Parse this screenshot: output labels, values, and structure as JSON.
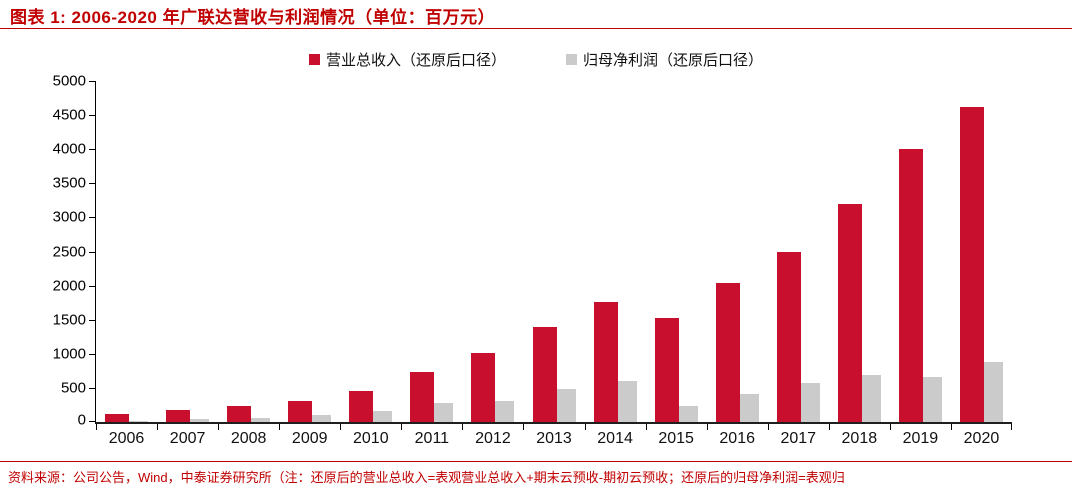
{
  "figure": {
    "title": "图表 1: 2006-2020 年广联达营收与利润情况（单位：百万元）",
    "source_note": "资料来源：公司公告，Wind，中泰证券研究所（注：还原后的营业总收入=表观营业总收入+期末云预收-期初云预收；还原后的归母净利润=表观归"
  },
  "colors": {
    "accent_red": "#C00000",
    "revenue_bar": "#C8102E",
    "profit_bar": "#CBCBCB",
    "axis_black": "#1F1F1F"
  },
  "chart_data": {
    "type": "bar",
    "title": "2006-2020 年广联达营收与利润情况",
    "unit": "百万元",
    "categories": [
      "2006",
      "2007",
      "2008",
      "2009",
      "2010",
      "2011",
      "2012",
      "2013",
      "2014",
      "2015",
      "2016",
      "2017",
      "2018",
      "2019",
      "2020"
    ],
    "series": [
      {
        "name": "营业总收入（还原后口径）",
        "color": "#C8102E",
        "values": [
          120,
          180,
          230,
          310,
          455,
          740,
          1010,
          1390,
          1760,
          1530,
          2040,
          2490,
          3190,
          4010,
          4620
        ]
      },
      {
        "name": "归母净利润（还原后口径）",
        "color": "#CBCBCB",
        "values": [
          15,
          50,
          60,
          100,
          160,
          275,
          310,
          490,
          600,
          235,
          415,
          575,
          690,
          655,
          885
        ]
      }
    ],
    "xlabel": "",
    "ylabel": "",
    "ylim": [
      0,
      5000
    ],
    "ytick_step": 500,
    "grid": false,
    "legend_position": "top-center"
  }
}
